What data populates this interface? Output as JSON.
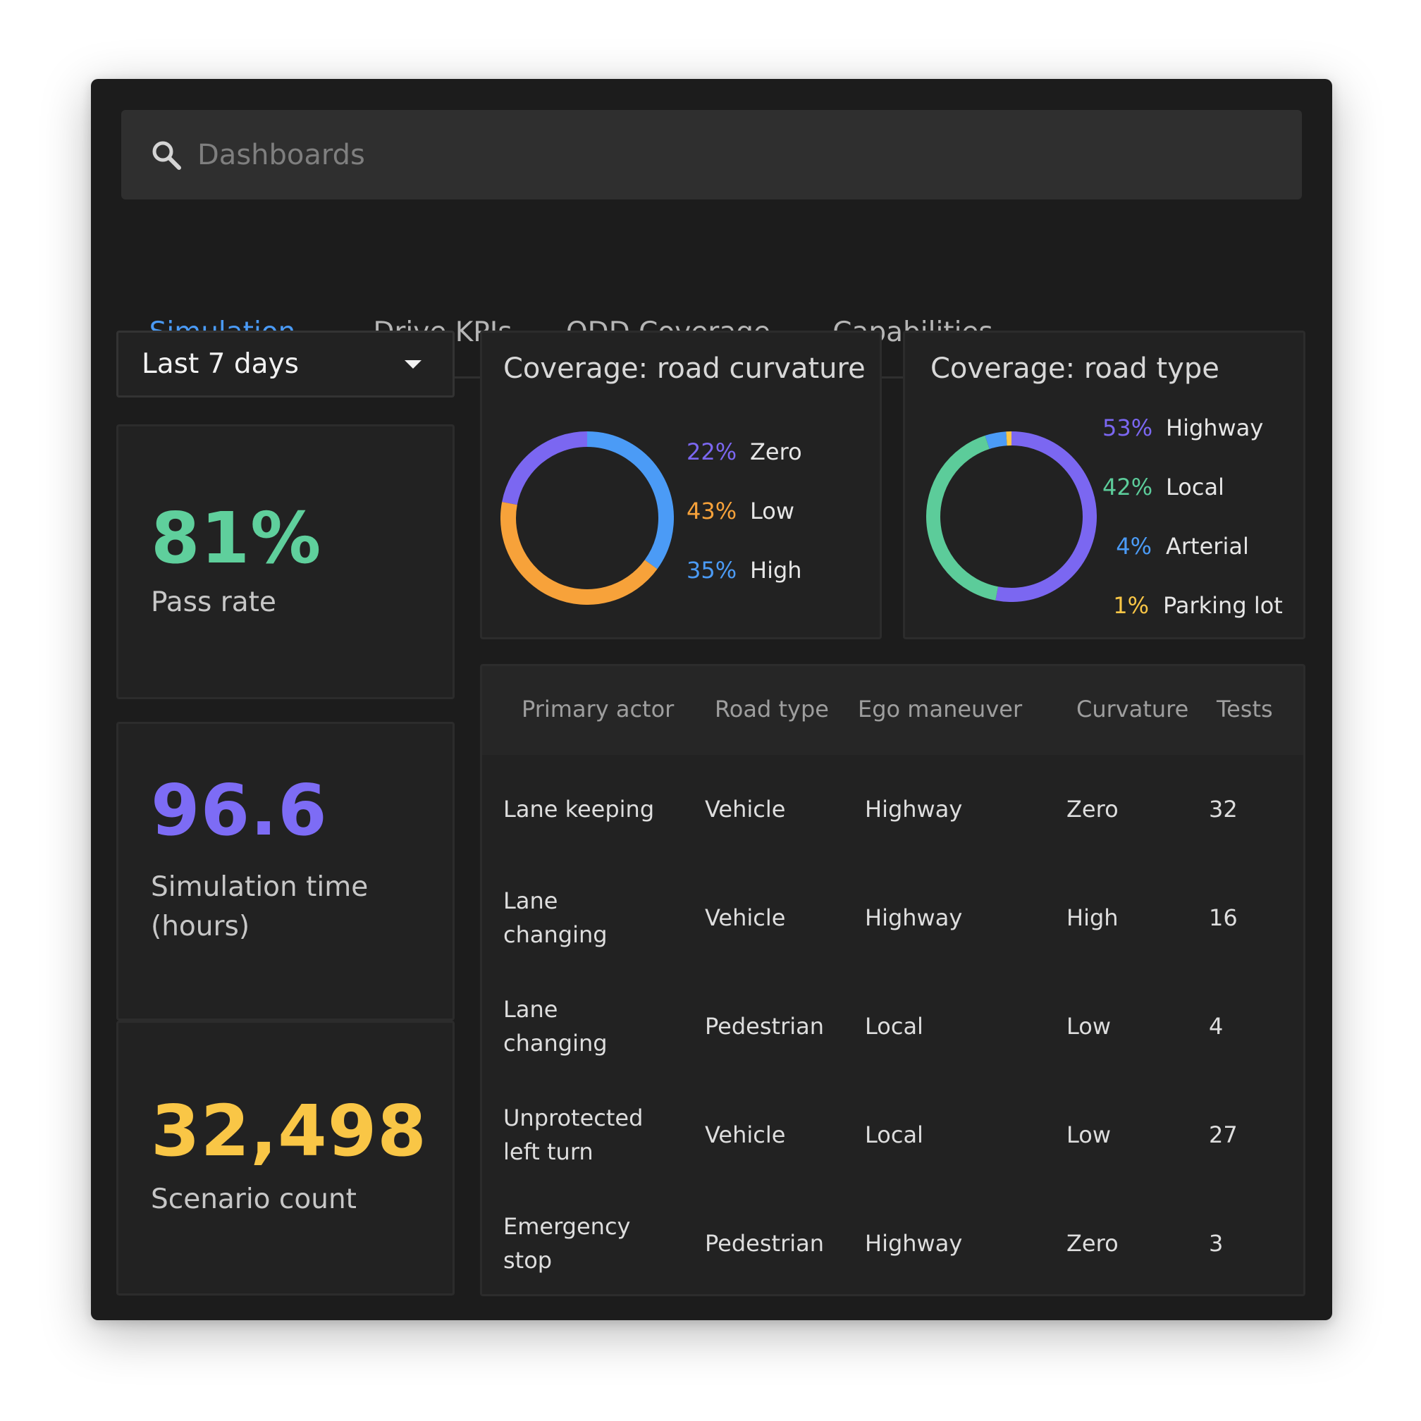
{
  "search": {
    "placeholder": "Dashboards",
    "value": ""
  },
  "tabs": [
    {
      "label": "Simulation",
      "active": true
    },
    {
      "label": "Drive KPIs",
      "active": false
    },
    {
      "label": "ODD Coverage",
      "active": false
    },
    {
      "label": "Capabilities",
      "active": false
    }
  ],
  "date_range": {
    "value": "Last 7 days"
  },
  "kpis": {
    "pass_rate": {
      "value": "81%",
      "label": "Pass rate",
      "color": "#5fcf9c"
    },
    "sim_time": {
      "value": "96.6",
      "label": "Simulation time (hours)",
      "color": "#7d6cf5"
    },
    "scenario_count": {
      "value": "32,498",
      "label": "Scenario count",
      "color": "#f9c646"
    }
  },
  "chart_data": [
    {
      "type": "pie",
      "title": "Coverage: road curvature",
      "series": [
        {
          "name": "Zero",
          "pct_label": "22%",
          "value": 22,
          "color": "#7b67f1"
        },
        {
          "name": "Low",
          "pct_label": "43%",
          "value": 43,
          "color": "#f7a23a"
        },
        {
          "name": "High",
          "pct_label": "35%",
          "value": 35,
          "color": "#4b9bf6"
        }
      ]
    },
    {
      "type": "pie",
      "title": "Coverage: road type",
      "series": [
        {
          "name": "Highway",
          "pct_label": "53%",
          "value": 53,
          "color": "#7b67f1"
        },
        {
          "name": "Local",
          "pct_label": "42%",
          "value": 42,
          "color": "#5ccc9a"
        },
        {
          "name": "Arterial",
          "pct_label": "4%",
          "value": 4,
          "color": "#4b9bf6"
        },
        {
          "name": "Parking lot",
          "pct_label": "1%",
          "value": 1,
          "color": "#f9c646"
        }
      ]
    }
  ],
  "table": {
    "headers": [
      "Primary actor",
      "Road type",
      "Ego maneuver",
      "Curvature",
      "Tests"
    ],
    "rows": [
      [
        "Lane keeping",
        "Vehicle",
        "Highway",
        "Zero",
        "32"
      ],
      [
        "Lane changing",
        "Vehicle",
        "Highway",
        "High",
        "16"
      ],
      [
        "Lane changing",
        "Pedestrian",
        "Local",
        "Low",
        "4"
      ],
      [
        "Unprotected left turn",
        "Vehicle",
        "Local",
        "Low",
        "27"
      ],
      [
        "Emergency stop",
        "Pedestrian",
        "Highway",
        "Zero",
        "3"
      ]
    ]
  }
}
